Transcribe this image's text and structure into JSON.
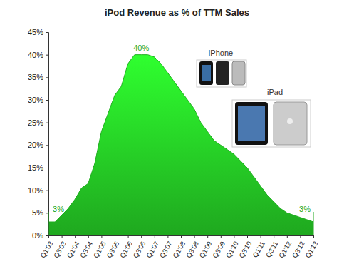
{
  "chart_data": {
    "type": "area",
    "title": "iPod Revenue as % of TTM Sales",
    "categories": [
      "Q1'03",
      null,
      "Q3'03",
      null,
      "Q1'04",
      null,
      "Q3'04",
      null,
      "Q1'05",
      null,
      "Q3'05",
      null,
      "Q1'06",
      null,
      "Q3'06",
      null,
      "Q1'07",
      null,
      "Q3'07",
      null,
      "Q1'08",
      null,
      "Q3'08",
      null,
      "Q1'09",
      null,
      "Q3'09",
      null,
      "Q1'10",
      null,
      "Q3'10",
      null,
      "Q1'11",
      null,
      "Q3'11",
      null,
      "Q1'12",
      null,
      "Q3'12",
      null,
      "Q1'13"
    ],
    "values": [
      3,
      3,
      4.5,
      6,
      8,
      10.5,
      11.5,
      16,
      23,
      27,
      31,
      33,
      38,
      40,
      40,
      40,
      39.5,
      38,
      36,
      34,
      32,
      30,
      28,
      25,
      23,
      21,
      20,
      19,
      18,
      16.5,
      15,
      13,
      11,
      9,
      7.5,
      6,
      5,
      4.5,
      4,
      3.5,
      3
    ],
    "color": "#22bb22",
    "ylim": [
      0,
      45
    ],
    "yticks": [
      {
        "value": 0,
        "label": "0%"
      },
      {
        "value": 5,
        "label": "5%"
      },
      {
        "value": 10,
        "label": "10%"
      },
      {
        "value": 15,
        "label": "15%"
      },
      {
        "value": 20,
        "label": "20%"
      },
      {
        "value": 25,
        "label": "25%"
      },
      {
        "value": 30,
        "label": "30%"
      },
      {
        "value": 35,
        "label": "35%"
      },
      {
        "value": 40,
        "label": "40%"
      },
      {
        "value": 45,
        "label": "45%"
      }
    ],
    "grid": false,
    "annotations": [
      {
        "text": "3%",
        "x": 0,
        "y": 3
      },
      {
        "text": "40%",
        "x": 14,
        "y": 40
      },
      {
        "text": "3%",
        "x": 40,
        "y": 3
      },
      {
        "text": "iPhone"
      },
      {
        "text": "iPad"
      }
    ]
  }
}
